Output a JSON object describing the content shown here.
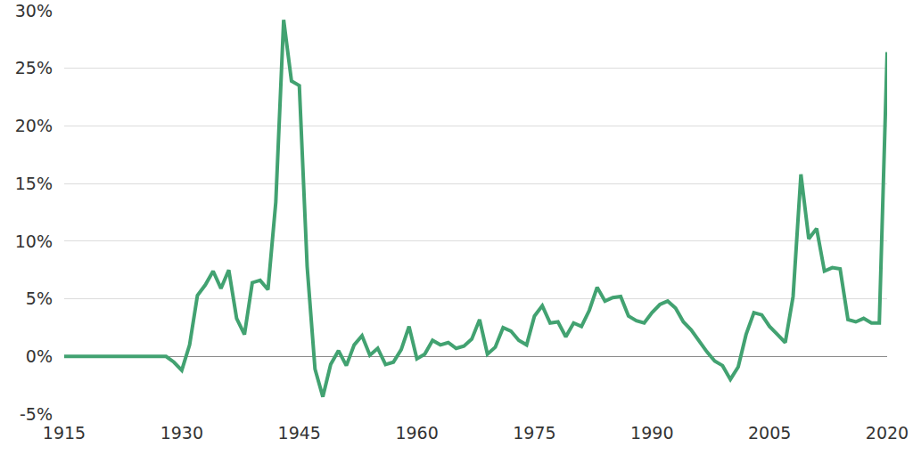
{
  "chart_data": {
    "type": "line",
    "x": [
      1915,
      1916,
      1917,
      1918,
      1919,
      1920,
      1921,
      1922,
      1923,
      1924,
      1925,
      1926,
      1927,
      1928,
      1929,
      1930,
      1931,
      1932,
      1933,
      1934,
      1935,
      1936,
      1937,
      1938,
      1939,
      1940,
      1941,
      1942,
      1943,
      1944,
      1945,
      1946,
      1947,
      1948,
      1949,
      1950,
      1951,
      1952,
      1953,
      1954,
      1955,
      1956,
      1957,
      1958,
      1959,
      1960,
      1961,
      1962,
      1963,
      1964,
      1965,
      1966,
      1967,
      1968,
      1969,
      1970,
      1971,
      1972,
      1973,
      1974,
      1975,
      1976,
      1977,
      1978,
      1979,
      1980,
      1981,
      1982,
      1983,
      1984,
      1985,
      1986,
      1987,
      1988,
      1989,
      1990,
      1991,
      1992,
      1993,
      1994,
      1995,
      1996,
      1997,
      1998,
      1999,
      2000,
      2001,
      2002,
      2003,
      2004,
      2005,
      2006,
      2007,
      2008,
      2009,
      2010,
      2011,
      2012,
      2013,
      2014,
      2015,
      2016,
      2017,
      2018,
      2019,
      2020
    ],
    "values": [
      0,
      0,
      0,
      0,
      0,
      0,
      0,
      0,
      0,
      0,
      0,
      0,
      0,
      0,
      -0.5,
      -1.2,
      1.0,
      5.3,
      6.2,
      7.4,
      5.9,
      7.5,
      3.3,
      1.9,
      6.4,
      6.6,
      5.8,
      13.4,
      29.2,
      23.9,
      23.5,
      7.8,
      -1.1,
      -3.5,
      -0.7,
      0.5,
      -0.8,
      1.0,
      1.8,
      0.1,
      0.7,
      -0.7,
      -0.5,
      0.6,
      2.6,
      -0.2,
      0.2,
      1.4,
      1.0,
      1.2,
      0.7,
      0.9,
      1.5,
      3.2,
      0.2,
      0.8,
      2.5,
      2.2,
      1.4,
      1.0,
      3.5,
      4.4,
      2.9,
      3.0,
      1.7,
      2.9,
      2.6,
      4.0,
      6.0,
      4.8,
      5.1,
      5.2,
      3.5,
      3.1,
      2.9,
      3.8,
      4.5,
      4.8,
      4.2,
      3.0,
      2.3,
      1.3,
      0.4,
      -0.4,
      -0.8,
      -2.0,
      -0.9,
      1.9,
      3.8,
      3.6,
      2.6,
      1.9,
      1.2,
      5.2,
      15.8,
      10.2,
      11.1,
      7.4,
      7.7,
      7.6,
      3.2,
      3.0,
      3.3,
      2.9,
      2.9,
      26.4
    ],
    "color": "#42a271",
    "xlim": [
      1915,
      2020
    ],
    "xticks": [
      1915,
      1930,
      1945,
      1960,
      1975,
      1990,
      2005,
      2020
    ],
    "ylim": [
      -5,
      30
    ],
    "yticks": [
      {
        "value": -5,
        "label": "-5%"
      },
      {
        "value": 0,
        "label": "0%"
      },
      {
        "value": 5,
        "label": "5%"
      },
      {
        "value": 10,
        "label": "10%"
      },
      {
        "value": 15,
        "label": "15%"
      },
      {
        "value": 20,
        "label": "20%"
      },
      {
        "value": 25,
        "label": "25%"
      },
      {
        "value": 30,
        "label": "30%"
      }
    ],
    "grid": true
  }
}
